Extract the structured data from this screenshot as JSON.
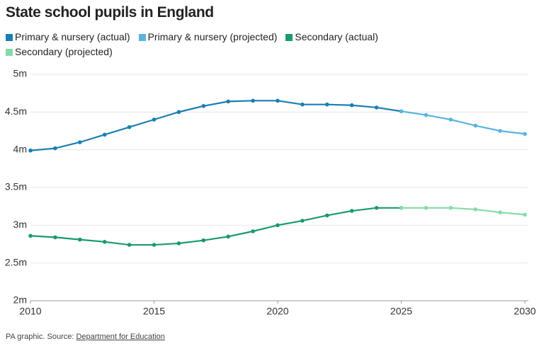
{
  "chart_data": {
    "type": "line",
    "title": "State school pupils in England",
    "x": [
      2010,
      2011,
      2012,
      2013,
      2014,
      2015,
      2016,
      2017,
      2018,
      2019,
      2020,
      2021,
      2022,
      2023,
      2024,
      2025,
      2026,
      2027,
      2028,
      2029,
      2030
    ],
    "series": [
      {
        "name": "Primary & nursery (actual)",
        "color": "#1a7fb0",
        "values": [
          3.99,
          4.02,
          4.1,
          4.2,
          4.3,
          4.4,
          4.5,
          4.58,
          4.64,
          4.65,
          4.65,
          4.6,
          4.6,
          4.59,
          4.56,
          4.51,
          null,
          null,
          null,
          null,
          null
        ]
      },
      {
        "name": "Primary & nursery (projected)",
        "color": "#5ab4e0",
        "values": [
          null,
          null,
          null,
          null,
          null,
          null,
          null,
          null,
          null,
          null,
          null,
          null,
          null,
          null,
          null,
          4.51,
          4.46,
          4.4,
          4.32,
          4.25,
          4.21
        ]
      },
      {
        "name": "Secondary (actual)",
        "color": "#1a9a6c",
        "values": [
          2.86,
          2.84,
          2.81,
          2.78,
          2.74,
          2.74,
          2.76,
          2.8,
          2.85,
          2.92,
          3.0,
          3.06,
          3.13,
          3.19,
          3.23,
          3.23,
          null,
          null,
          null,
          null,
          null
        ]
      },
      {
        "name": "Secondary (projected)",
        "color": "#86dba6",
        "values": [
          null,
          null,
          null,
          null,
          null,
          null,
          null,
          null,
          null,
          null,
          null,
          null,
          null,
          null,
          null,
          3.23,
          3.23,
          3.23,
          3.21,
          3.17,
          3.14
        ]
      }
    ],
    "xlim": [
      2010,
      2030
    ],
    "xticks": [
      2010,
      2015,
      2020,
      2025,
      2030
    ],
    "ylim": [
      2,
      5
    ],
    "yticks": [
      {
        "value": 2,
        "label": "2m"
      },
      {
        "value": 2.5,
        "label": "2.5m"
      },
      {
        "value": 3,
        "label": "3m"
      },
      {
        "value": 3.5,
        "label": "3.5m"
      },
      {
        "value": 4,
        "label": "4m"
      },
      {
        "value": 4.5,
        "label": "4.5m"
      },
      {
        "value": 5,
        "label": "5m"
      }
    ],
    "grid": true
  },
  "footer": {
    "prefix": "PA graphic. Source:",
    "link": "Department for Education"
  }
}
